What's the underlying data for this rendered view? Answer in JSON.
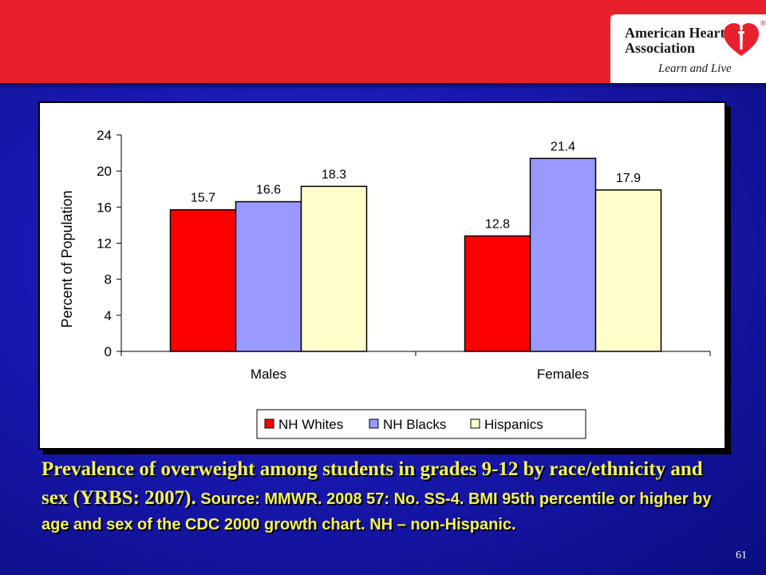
{
  "branding": {
    "org_name": "American Heart Association",
    "org_line1": "American Heart",
    "org_line2": "Association",
    "tagline": "Learn and Live",
    "registered_mark": "®",
    "colors": {
      "band": "#e8202e",
      "background": "#1414a8",
      "caption": "#f2f25a"
    }
  },
  "caption": {
    "part1": "Prevalence of overweight among students in grades 9-12 by race/ethnicity and sex ",
    "part2": "(YRBS: 2007).",
    "part3": " Source: MMWR. 2008 57: No. SS-4. BMI 95th percentile or higher by age and sex of the CDC 2000 growth chart. NH – non-Hispanic."
  },
  "page_number": "61",
  "chart_data": {
    "type": "bar",
    "categories": [
      "Males",
      "Females"
    ],
    "series": [
      {
        "name": "NH Whites",
        "values": [
          15.7,
          12.8
        ],
        "color": "#ff0000"
      },
      {
        "name": "NH Blacks",
        "values": [
          16.6,
          21.4
        ],
        "color": "#9999ff"
      },
      {
        "name": "Hispanics",
        "values": [
          18.3,
          17.9
        ],
        "color": "#ffffcc"
      }
    ],
    "ylabel": "Percent of Population",
    "xlabel": "",
    "ylim": [
      0,
      24
    ],
    "yticks": [
      0,
      4,
      8,
      12,
      16,
      20,
      24
    ],
    "legend_position": "bottom",
    "grid": false
  }
}
